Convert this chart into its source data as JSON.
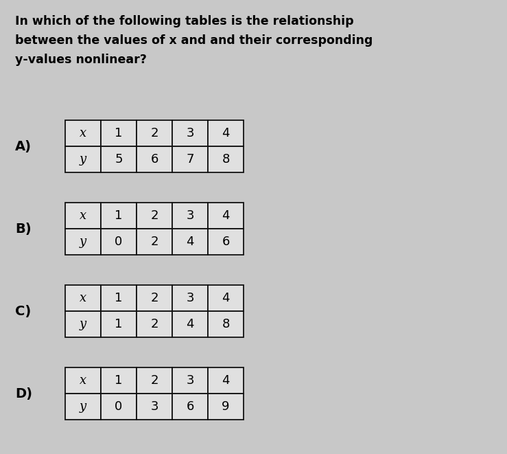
{
  "question_lines": [
    "In which of the following tables is the relationship",
    "between the values of x and and their corresponding",
    "y-values nonlinear?"
  ],
  "tables": [
    {
      "label": "A)",
      "row1": [
        "x",
        "1",
        "2",
        "3",
        "4"
      ],
      "row2": [
        "y",
        "5",
        "6",
        "7",
        "8"
      ]
    },
    {
      "label": "B)",
      "row1": [
        "x",
        "1",
        "2",
        "3",
        "4"
      ],
      "row2": [
        "y",
        "0",
        "2",
        "4",
        "6"
      ]
    },
    {
      "label": "C)",
      "row1": [
        "x",
        "1",
        "2",
        "3",
        "4"
      ],
      "row2": [
        "y",
        "1",
        "2",
        "4",
        "8"
      ]
    },
    {
      "label": "D)",
      "row1": [
        "x",
        "1",
        "2",
        "3",
        "4"
      ],
      "row2": [
        "y",
        "0",
        "3",
        "6",
        "9"
      ]
    }
  ],
  "bg_color": "#c8c8c8",
  "table_bg": "#e0e0e0",
  "border_color": "#111111",
  "text_color": "#000000",
  "question_fontsize": 12.5,
  "label_fontsize": 14,
  "cell_fontsize": 13,
  "fig_width": 7.39,
  "fig_height": 6.61,
  "dpi": 100
}
